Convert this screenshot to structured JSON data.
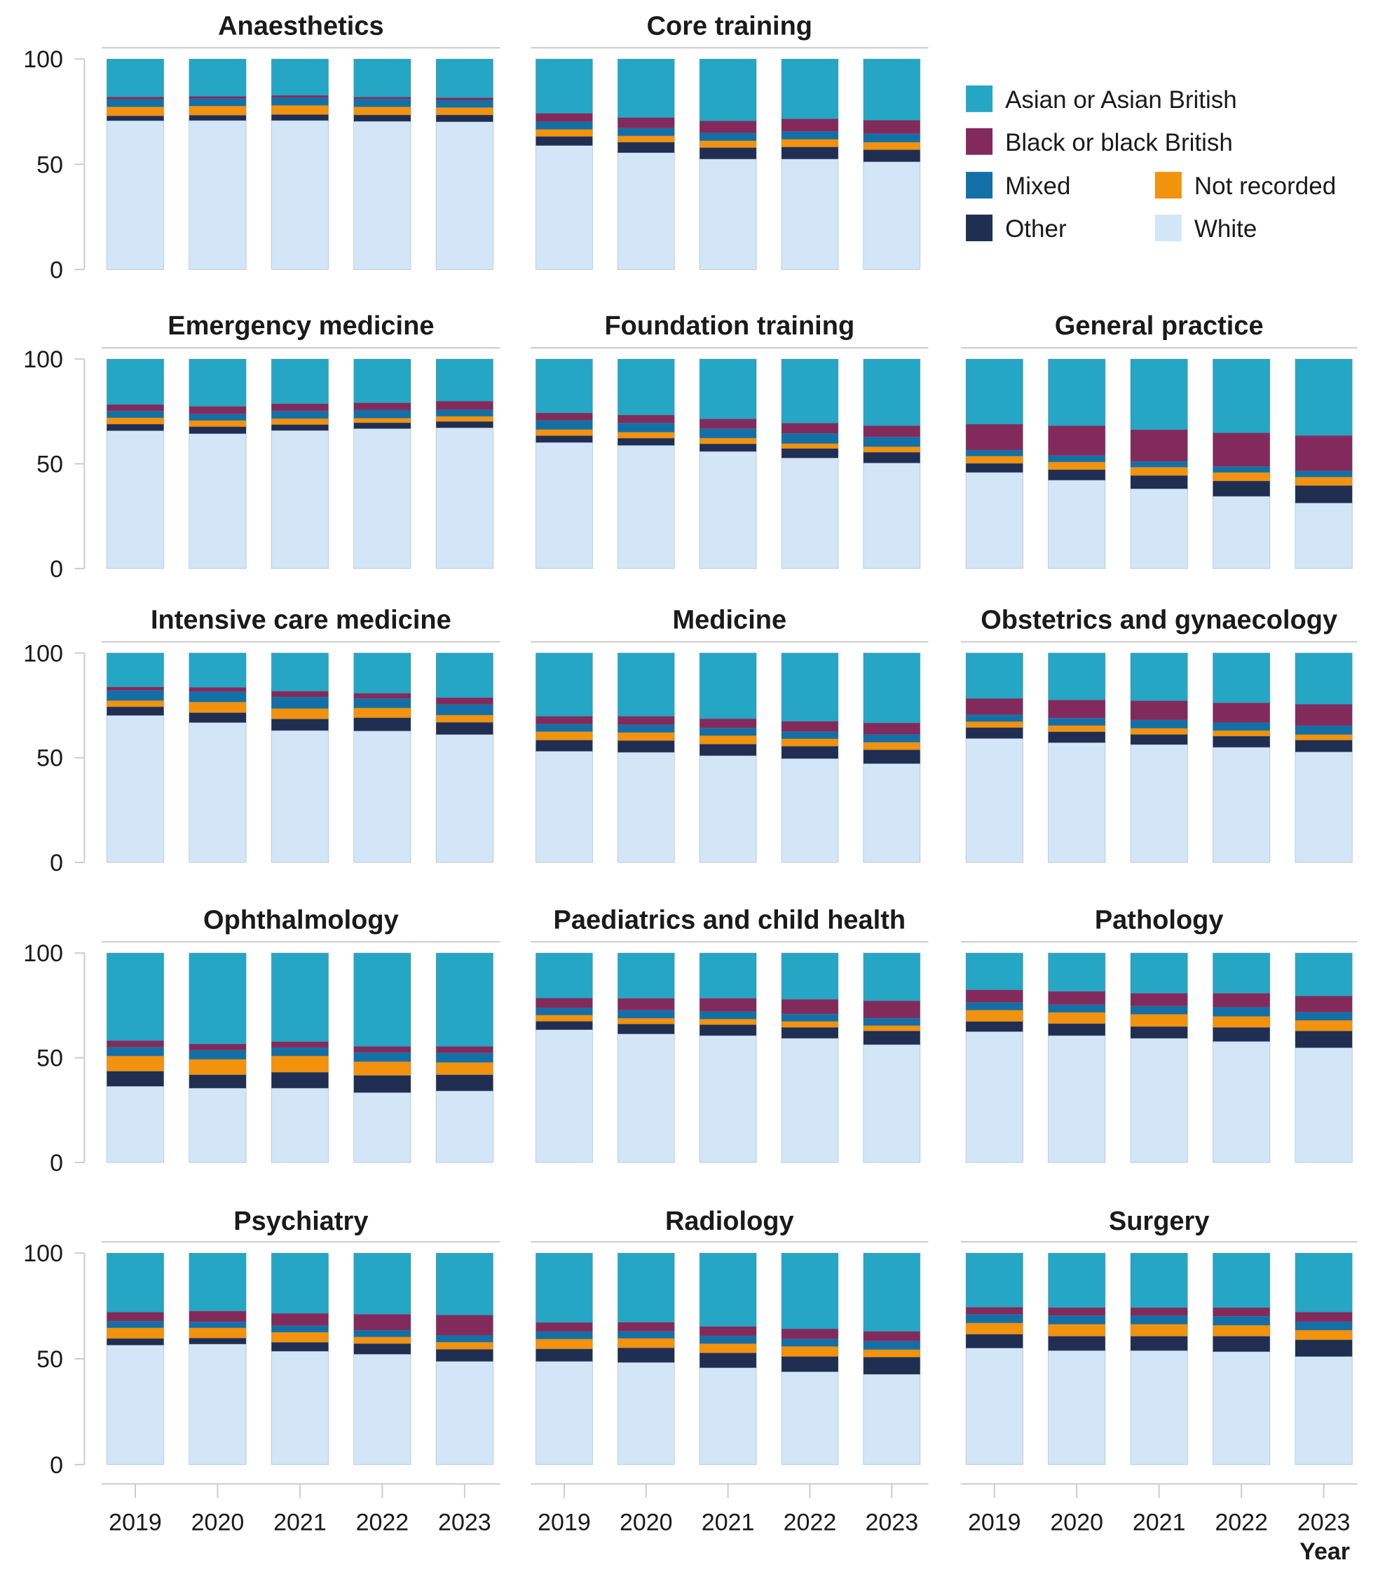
{
  "chart_data": {
    "type": "bar",
    "stacked": true,
    "percent": true,
    "layout": "small-multiples 5x3",
    "xlabel": "Year",
    "ylabel": "",
    "ylim": [
      0,
      100
    ],
    "yticks": [
      0,
      50,
      100
    ],
    "grid": false,
    "legend_position": "top-right",
    "categories": [
      "2019",
      "2020",
      "2021",
      "2022",
      "2023"
    ],
    "series_order": [
      "White",
      "Other",
      "Not recorded",
      "Mixed",
      "Black or black British",
      "Asian or Asian British"
    ],
    "legend": [
      {
        "name": "Asian or Asian British",
        "color": "#25a6c4"
      },
      {
        "name": "Black or black British",
        "color": "#832a5c"
      },
      {
        "name": "Mixed",
        "color": "#1270a6"
      },
      {
        "name": "Not recorded",
        "color": "#f2920d"
      },
      {
        "name": "Other",
        "color": "#202e52"
      },
      {
        "name": "White",
        "color": "#d2e6f8"
      }
    ],
    "panels": [
      {
        "title": "Anaesthetics",
        "series": [
          {
            "name": "White",
            "values": [
              70.7,
              70.8,
              70.8,
              70.4,
              70.2
            ]
          },
          {
            "name": "Other",
            "values": [
              2.3,
              2.5,
              2.8,
              3.0,
              3.2
            ]
          },
          {
            "name": "Not recorded",
            "values": [
              4.3,
              4.4,
              4.4,
              3.9,
              3.6
            ]
          },
          {
            "name": "Mixed",
            "values": [
              3.6,
              3.5,
              3.6,
              3.7,
              3.4
            ]
          },
          {
            "name": "Black or black British",
            "values": [
              1.1,
              1.1,
              1.1,
              0.9,
              1.2
            ]
          },
          {
            "name": "Asian or Asian British",
            "values": [
              18.0,
              17.7,
              17.3,
              18.1,
              18.4
            ]
          }
        ]
      },
      {
        "title": "Core training",
        "series": [
          {
            "name": "White",
            "values": [
              58.9,
              55.5,
              52.5,
              52.5,
              51.2
            ]
          },
          {
            "name": "Other",
            "values": [
              4.3,
              5.0,
              5.4,
              5.7,
              5.7
            ]
          },
          {
            "name": "Not recorded",
            "values": [
              3.4,
              3.0,
              3.3,
              3.7,
              3.6
            ]
          },
          {
            "name": "Mixed",
            "values": [
              3.6,
              3.7,
              3.7,
              3.7,
              4.0
            ]
          },
          {
            "name": "Black or black British",
            "values": [
              4.0,
              5.0,
              5.7,
              6.0,
              6.4
            ]
          },
          {
            "name": "Asian or Asian British",
            "values": [
              25.8,
              27.8,
              29.4,
              28.4,
              29.1
            ]
          }
        ]
      },
      {
        "title": "Emergency medicine",
        "series": [
          {
            "name": "White",
            "values": [
              65.8,
              64.4,
              65.9,
              66.8,
              67.2
            ]
          },
          {
            "name": "Other",
            "values": [
              3.1,
              3.3,
              2.8,
              2.8,
              3.0
            ]
          },
          {
            "name": "Not recorded",
            "values": [
              3.1,
              3.0,
              2.9,
              2.2,
              2.5
            ]
          },
          {
            "name": "Mixed",
            "values": [
              3.2,
              3.1,
              3.6,
              3.8,
              3.1
            ]
          },
          {
            "name": "Black or black British",
            "values": [
              3.1,
              3.6,
              3.5,
              3.5,
              4.1
            ]
          },
          {
            "name": "Asian or Asian British",
            "values": [
              21.7,
              22.6,
              21.3,
              20.9,
              20.1
            ]
          }
        ]
      },
      {
        "title": "Foundation training",
        "series": [
          {
            "name": "White",
            "values": [
              60.2,
              58.8,
              55.9,
              52.8,
              50.4
            ]
          },
          {
            "name": "Other",
            "values": [
              3.2,
              3.4,
              3.6,
              4.5,
              5.1
            ]
          },
          {
            "name": "Not recorded",
            "values": [
              3.0,
              2.9,
              2.8,
              2.4,
              2.7
            ]
          },
          {
            "name": "Mixed",
            "values": [
              4.3,
              4.4,
              4.5,
              4.8,
              4.6
            ]
          },
          {
            "name": "Black or black British",
            "values": [
              3.6,
              3.8,
              4.6,
              4.9,
              5.4
            ]
          },
          {
            "name": "Asian or Asian British",
            "values": [
              25.7,
              26.7,
              28.6,
              30.6,
              31.8
            ]
          }
        ]
      },
      {
        "title": "General practice",
        "series": [
          {
            "name": "White",
            "values": [
              45.9,
              42.2,
              38.1,
              34.5,
              31.3
            ]
          },
          {
            "name": "Other",
            "values": [
              4.3,
              5.0,
              6.3,
              7.3,
              8.3
            ]
          },
          {
            "name": "Not recorded",
            "values": [
              3.5,
              3.7,
              4.0,
              4.1,
              4.1
            ]
          },
          {
            "name": "Mixed",
            "values": [
              2.8,
              3.0,
              2.7,
              2.8,
              2.9
            ]
          },
          {
            "name": "Black or black British",
            "values": [
              12.4,
              14.3,
              15.2,
              16.1,
              16.9
            ]
          },
          {
            "name": "Asian or Asian British",
            "values": [
              31.1,
              31.8,
              33.7,
              35.2,
              36.5
            ]
          }
        ]
      },
      {
        "title": "Intensive care medicine",
        "series": [
          {
            "name": "White",
            "values": [
              70.2,
              66.8,
              63.0,
              62.8,
              61.1
            ]
          },
          {
            "name": "Other",
            "values": [
              4.1,
              4.7,
              5.5,
              6.3,
              5.8
            ]
          },
          {
            "name": "Not recorded",
            "values": [
              3.0,
              5.1,
              5.0,
              4.7,
              3.5
            ]
          },
          {
            "name": "Mixed",
            "values": [
              4.8,
              4.9,
              5.5,
              4.5,
              5.0
            ]
          },
          {
            "name": "Black or black British",
            "values": [
              1.7,
              2.1,
              2.8,
              2.5,
              3.3
            ]
          },
          {
            "name": "Asian or Asian British",
            "values": [
              16.2,
              16.4,
              18.2,
              19.2,
              21.3
            ]
          }
        ]
      },
      {
        "title": "Medicine",
        "series": [
          {
            "name": "White",
            "values": [
              53.1,
              52.6,
              51.0,
              49.6,
              47.2
            ]
          },
          {
            "name": "Other",
            "values": [
              5.3,
              5.6,
              5.5,
              5.9,
              6.6
            ]
          },
          {
            "name": "Not recorded",
            "values": [
              4.1,
              3.9,
              4.1,
              3.6,
              3.6
            ]
          },
          {
            "name": "Mixed",
            "values": [
              3.5,
              3.6,
              3.6,
              3.4,
              3.7
            ]
          },
          {
            "name": "Black or black British",
            "values": [
              3.8,
              4.1,
              4.4,
              4.9,
              5.5
            ]
          },
          {
            "name": "Asian or Asian British",
            "values": [
              30.2,
              30.2,
              31.4,
              32.6,
              33.4
            ]
          }
        ]
      },
      {
        "title": "Obstetrics and gynaecology",
        "series": [
          {
            "name": "White",
            "values": [
              59.2,
              57.2,
              56.3,
              55.0,
              52.8
            ]
          },
          {
            "name": "Other",
            "values": [
              5.2,
              5.2,
              4.8,
              5.3,
              5.6
            ]
          },
          {
            "name": "Not recorded",
            "values": [
              2.9,
              3.0,
              3.0,
              2.7,
              2.7
            ]
          },
          {
            "name": "Mixed",
            "values": [
              3.3,
              3.5,
              3.9,
              3.8,
              4.2
            ]
          },
          {
            "name": "Black or black British",
            "values": [
              7.7,
              8.7,
              9.2,
              9.4,
              10.2
            ]
          },
          {
            "name": "Asian or Asian British",
            "values": [
              21.7,
              22.4,
              22.8,
              23.8,
              24.5
            ]
          }
        ]
      },
      {
        "title": "Ophthalmology",
        "series": [
          {
            "name": "White",
            "values": [
              36.4,
              35.5,
              35.5,
              33.4,
              34.2
            ]
          },
          {
            "name": "Other",
            "values": [
              7.2,
              6.4,
              7.6,
              8.2,
              7.7
            ]
          },
          {
            "name": "Not recorded",
            "values": [
              7.3,
              7.4,
              7.8,
              6.6,
              5.9
            ]
          },
          {
            "name": "Mixed",
            "values": [
              4.1,
              4.3,
              4.0,
              4.3,
              4.5
            ]
          },
          {
            "name": "Black or black British",
            "values": [
              3.2,
              3.0,
              2.8,
              2.9,
              3.1
            ]
          },
          {
            "name": "Asian or Asian British",
            "values": [
              41.8,
              43.4,
              42.3,
              44.6,
              44.6
            ]
          }
        ]
      },
      {
        "title": "Paediatrics and child health",
        "series": [
          {
            "name": "White",
            "values": [
              63.4,
              61.4,
              60.6,
              59.3,
              56.3
            ]
          },
          {
            "name": "Other",
            "values": [
              4.0,
              4.7,
              5.2,
              5.2,
              6.5
            ]
          },
          {
            "name": "Not recorded",
            "values": [
              3.0,
              2.8,
              2.7,
              2.9,
              2.6
            ]
          },
          {
            "name": "Mixed",
            "values": [
              3.4,
              3.8,
              3.6,
              3.5,
              3.5
            ]
          },
          {
            "name": "Black or black British",
            "values": [
              4.7,
              5.7,
              6.3,
              7.0,
              8.3
            ]
          },
          {
            "name": "Asian or Asian British",
            "values": [
              21.5,
              21.6,
              21.6,
              22.1,
              22.8
            ]
          }
        ]
      },
      {
        "title": "Pathology",
        "series": [
          {
            "name": "White",
            "values": [
              62.5,
              60.6,
              59.3,
              57.8,
              54.8
            ]
          },
          {
            "name": "Other",
            "values": [
              4.8,
              5.7,
              5.6,
              6.7,
              8.0
            ]
          },
          {
            "name": "Not recorded",
            "values": [
              5.5,
              5.4,
              5.9,
              5.3,
              5.1
            ]
          },
          {
            "name": "Mixed",
            "values": [
              3.6,
              3.7,
              3.9,
              4.3,
              3.9
            ]
          },
          {
            "name": "Black or black British",
            "values": [
              6.0,
              6.3,
              6.1,
              6.7,
              7.7
            ]
          },
          {
            "name": "Asian or Asian British",
            "values": [
              17.6,
              18.3,
              19.2,
              19.2,
              20.5
            ]
          }
        ]
      },
      {
        "title": "Psychiatry",
        "series": [
          {
            "name": "White",
            "values": [
              56.5,
              57.0,
              53.6,
              52.2,
              48.8
            ]
          },
          {
            "name": "Other",
            "values": [
              3.1,
              2.8,
              4.2,
              5.0,
              5.7
            ]
          },
          {
            "name": "Not recorded",
            "values": [
              5.1,
              4.9,
              4.8,
              3.2,
              3.4
            ]
          },
          {
            "name": "Mixed",
            "values": [
              3.1,
              2.8,
              3.1,
              3.1,
              3.2
            ]
          },
          {
            "name": "Black or black British",
            "values": [
              4.3,
              5.1,
              5.8,
              7.6,
              9.6
            ]
          },
          {
            "name": "Asian or Asian British",
            "values": [
              27.9,
              27.4,
              28.5,
              28.9,
              29.3
            ]
          }
        ]
      },
      {
        "title": "Radiology",
        "series": [
          {
            "name": "White",
            "values": [
              48.8,
              48.3,
              45.8,
              43.9,
              42.7
            ]
          },
          {
            "name": "Other",
            "values": [
              5.9,
              6.9,
              7.0,
              7.2,
              8.1
            ]
          },
          {
            "name": "Not recorded",
            "values": [
              4.7,
              4.5,
              4.4,
              4.8,
              3.6
            ]
          },
          {
            "name": "Mixed",
            "values": [
              3.5,
              3.3,
              3.6,
              3.5,
              4.0
            ]
          },
          {
            "name": "Black or black British",
            "values": [
              4.3,
              4.3,
              4.5,
              4.8,
              4.6
            ]
          },
          {
            "name": "Asian or Asian British",
            "values": [
              32.8,
              32.7,
              34.7,
              35.8,
              37.0
            ]
          }
        ]
      },
      {
        "title": "Surgery",
        "series": [
          {
            "name": "White",
            "values": [
              55.1,
              53.9,
              53.9,
              53.4,
              51.1
            ]
          },
          {
            "name": "Other",
            "values": [
              6.5,
              6.8,
              6.8,
              7.3,
              7.9
            ]
          },
          {
            "name": "Not recorded",
            "values": [
              5.4,
              5.7,
              5.7,
              5.2,
              4.6
            ]
          },
          {
            "name": "Mixed",
            "values": [
              4.0,
              4.1,
              4.0,
              4.2,
              3.9
            ]
          },
          {
            "name": "Black or black British",
            "values": [
              3.4,
              3.7,
              3.8,
              4.1,
              4.6
            ]
          },
          {
            "name": "Asian or Asian British",
            "values": [
              25.6,
              25.8,
              25.8,
              25.8,
              27.9
            ]
          }
        ]
      }
    ]
  }
}
